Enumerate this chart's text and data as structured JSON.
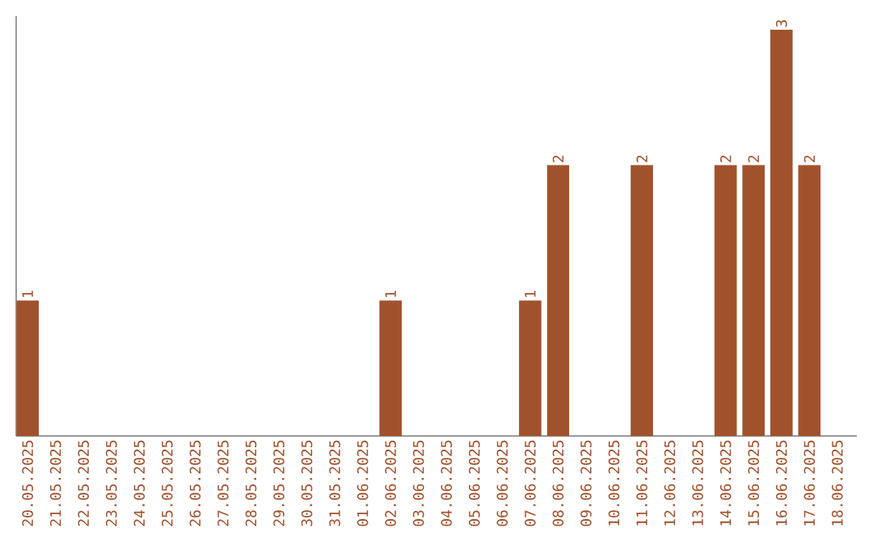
{
  "chart_data": {
    "type": "bar",
    "categories": [
      "20.05.2025",
      "21.05.2025",
      "22.05.2025",
      "23.05.2025",
      "24.05.2025",
      "25.05.2025",
      "26.05.2025",
      "27.05.2025",
      "28.05.2025",
      "29.05.2025",
      "30.05.2025",
      "31.05.2025",
      "01.06.2025",
      "02.06.2025",
      "03.06.2025",
      "04.06.2025",
      "05.06.2025",
      "06.06.2025",
      "07.06.2025",
      "08.06.2025",
      "09.06.2025",
      "10.06.2025",
      "11.06.2025",
      "12.06.2025",
      "13.06.2025",
      "14.06.2025",
      "15.06.2025",
      "16.06.2025",
      "17.06.2025",
      "18.06.2025"
    ],
    "values": [
      1,
      0,
      0,
      0,
      0,
      0,
      0,
      0,
      0,
      0,
      0,
      0,
      0,
      1,
      0,
      0,
      0,
      0,
      1,
      2,
      0,
      0,
      2,
      0,
      0,
      2,
      2,
      3,
      2,
      0
    ],
    "value_labels": [
      "1",
      null,
      null,
      null,
      null,
      null,
      null,
      null,
      null,
      null,
      null,
      null,
      null,
      "1",
      null,
      null,
      null,
      null,
      "1",
      "2",
      null,
      null,
      "2",
      null,
      null,
      "2",
      "2",
      "3",
      "2",
      null
    ],
    "color": "#a0522d",
    "ylim": [
      0,
      3.1
    ],
    "tick_labels": "x"
  }
}
